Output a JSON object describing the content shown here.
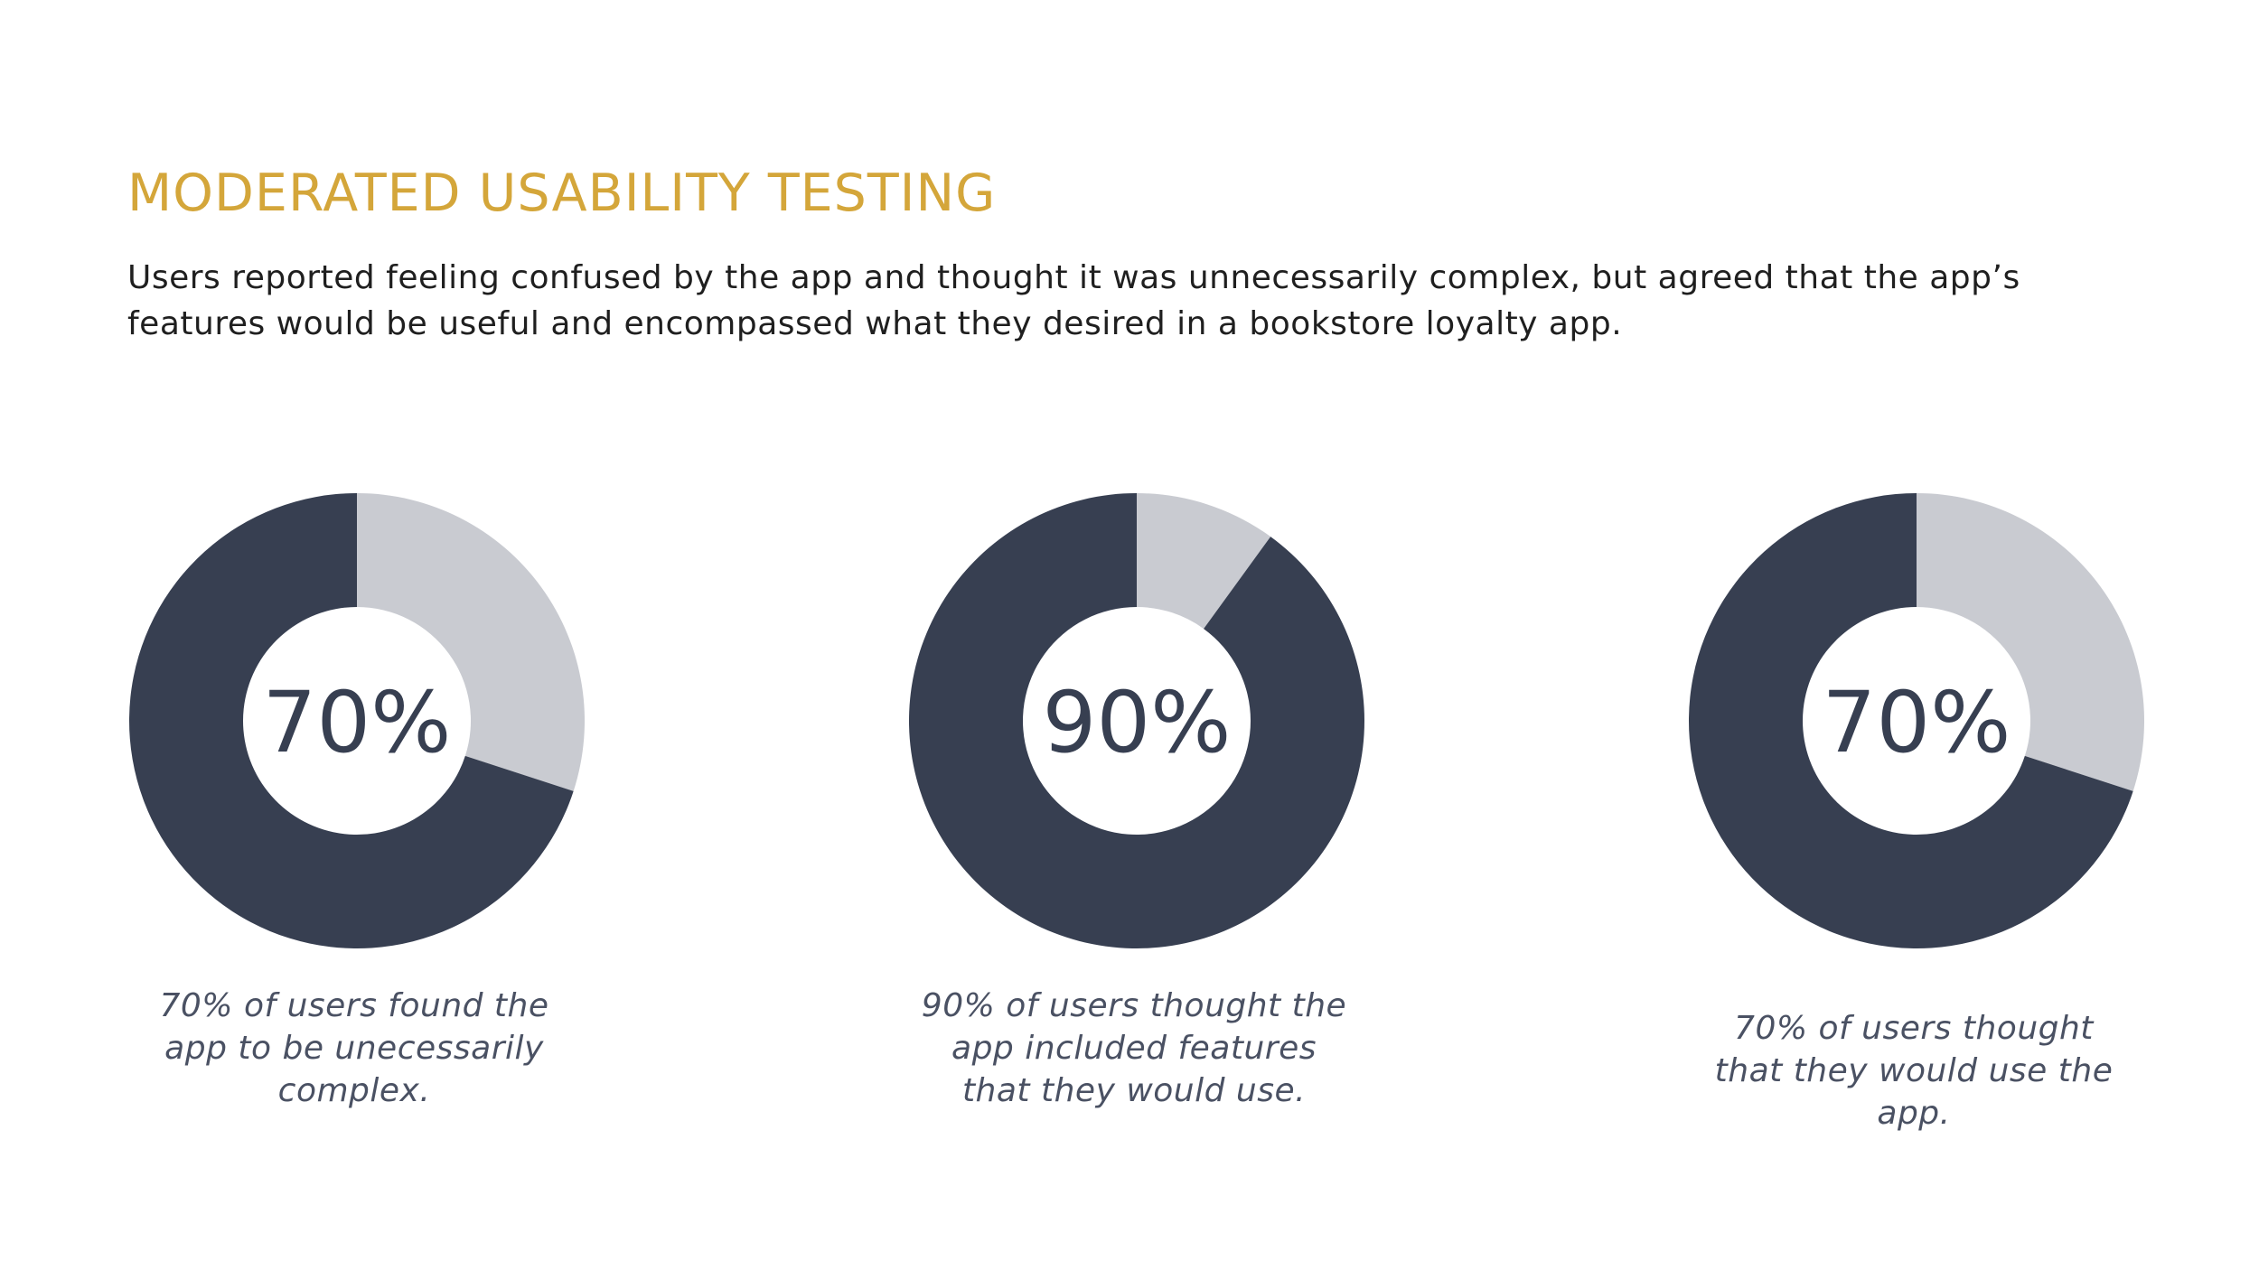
{
  "header": {
    "title": "MODERATED USABILITY TESTING",
    "subtitle": "Users reported feeling confused by the app and thought it was unnecessarily complex, but agreed that the app’s features would be useful and encompassed what they desired in a bookstore loyalty app."
  },
  "colors": {
    "title": "#D4A63A",
    "primary": "#373F51",
    "remainder": "#C9CBD1",
    "caption": "#4A5163",
    "background": "#FFFFFF"
  },
  "chart_data": [
    {
      "type": "pie",
      "style": "donut",
      "values": [
        70,
        30
      ],
      "center_label": "70%",
      "caption": "70% of users found the app to be unecessarily complex."
    },
    {
      "type": "pie",
      "style": "donut",
      "values": [
        90,
        10
      ],
      "center_label": "90%",
      "caption": "90% of users thought the app included features that they would use."
    },
    {
      "type": "pie",
      "style": "donut",
      "values": [
        70,
        30
      ],
      "center_label": "70%",
      "caption": "70% of users thought that they would use the app."
    }
  ]
}
